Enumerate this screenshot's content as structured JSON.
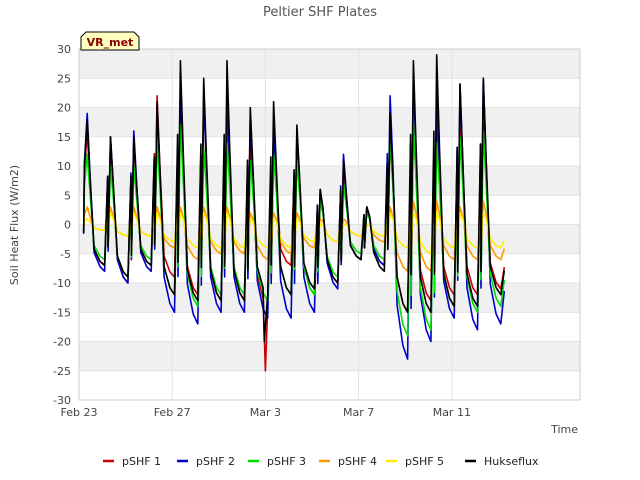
{
  "chart_data": {
    "type": "line",
    "title": "Peltier SHF Plates",
    "xlabel": "Time",
    "ylabel": "Soil Heat Flux (W/m2)",
    "site_badge": "VR_met",
    "colors": {
      "badge_bg": "#ffffc0",
      "band": "#f0f0f0"
    },
    "xlim": [
      0,
      21.5
    ],
    "ylim": [
      -30,
      30
    ],
    "x_units": "days since Feb 23",
    "yticks": [
      -30,
      -25,
      -20,
      -15,
      -10,
      -5,
      0,
      5,
      10,
      15,
      20,
      25,
      30
    ],
    "xticks": [
      {
        "value": 0,
        "label": "Feb 23"
      },
      {
        "value": 4,
        "label": "Feb 27"
      },
      {
        "value": 8,
        "label": "Mar 3"
      },
      {
        "value": 12,
        "label": "Mar 7"
      },
      {
        "value": 16,
        "label": "Mar 11"
      }
    ],
    "legend_position": "bottom",
    "days": [
      0.35,
      1.35,
      2.35,
      3.35,
      4.35,
      5.35,
      6.35,
      7.35,
      8.35,
      9.35,
      10.35,
      11.35,
      12.35,
      13.35,
      14.35,
      15.35,
      16.35,
      17.35
    ],
    "series": [
      {
        "name": "pSHF 1",
        "color": "#cc0000",
        "daily_max": [
          16,
          14,
          14,
          22,
          21,
          22,
          18,
          14,
          14,
          14,
          5,
          9,
          3,
          15,
          17,
          17,
          19,
          20
        ],
        "daily_min": [
          -7,
          -10,
          -7,
          -9,
          -12,
          -13,
          -13,
          -14,
          -7,
          -12,
          -10,
          -6,
          -7,
          -15,
          -13,
          -12,
          -12,
          -11
        ],
        "spikes": [
          {
            "x": 8.0,
            "y": -25
          }
        ]
      },
      {
        "name": "pSHF 2",
        "color": "#0000cc",
        "daily_max": [
          19,
          15,
          16,
          20,
          23,
          22,
          22,
          18,
          16,
          16,
          6,
          12,
          3,
          22,
          25,
          23,
          24,
          25
        ],
        "daily_min": [
          -8,
          -10,
          -8,
          -15,
          -17,
          -15,
          -15,
          -16,
          -16,
          -15,
          -11,
          -6,
          -7,
          -23,
          -20,
          -16,
          -18,
          -17
        ],
        "spikes": []
      },
      {
        "name": "pSHF 3",
        "color": "#00dd00",
        "daily_max": [
          12,
          10,
          10,
          14,
          17,
          13,
          14,
          11,
          12,
          11,
          4,
          7,
          2,
          15,
          17,
          14,
          15,
          16
        ],
        "daily_min": [
          -6,
          -9,
          -6,
          -12,
          -14,
          -12,
          -12,
          -13,
          -12,
          -12,
          -9,
          -5,
          -6,
          -19,
          -18,
          -14,
          -15,
          -14
        ],
        "spikes": []
      },
      {
        "name": "pSHF 4",
        "color": "#ff9900",
        "daily_max": [
          3,
          3,
          3,
          3,
          3,
          3,
          3,
          2,
          2,
          2,
          1,
          1,
          0,
          3,
          4,
          4,
          3,
          4
        ],
        "daily_min": [
          -1,
          -2,
          -2,
          -4,
          -6,
          -5,
          -5,
          -6,
          -5,
          -4,
          -3,
          -2,
          -3,
          -8,
          -8,
          -6,
          -6,
          -6
        ],
        "spikes": []
      },
      {
        "name": "pSHF 5",
        "color": "#ffee00",
        "daily_max": [
          1,
          2,
          2,
          2,
          2,
          2,
          2,
          1,
          1,
          1,
          0,
          0,
          0,
          2,
          2,
          2,
          2,
          2
        ],
        "daily_min": [
          -1,
          -2,
          -2,
          -3,
          -4,
          -4,
          -4,
          -4,
          -4,
          -3,
          -3,
          -2,
          -2,
          -4,
          -5,
          -4,
          -4,
          -4
        ],
        "spikes": []
      },
      {
        "name": "Hukseflux",
        "color": "#000000",
        "daily_max": [
          18,
          15,
          15,
          21,
          28,
          25,
          28,
          20,
          21,
          17,
          6,
          11,
          3,
          19,
          28,
          29,
          24,
          25
        ],
        "daily_min": [
          -7,
          -9,
          -7,
          -12,
          -13,
          -13,
          -13,
          -12,
          -12,
          -11,
          -10,
          -6,
          -8,
          -15,
          -15,
          -14,
          -14,
          -12
        ],
        "spikes": [
          {
            "x": 7.95,
            "y": -20
          }
        ]
      }
    ]
  }
}
